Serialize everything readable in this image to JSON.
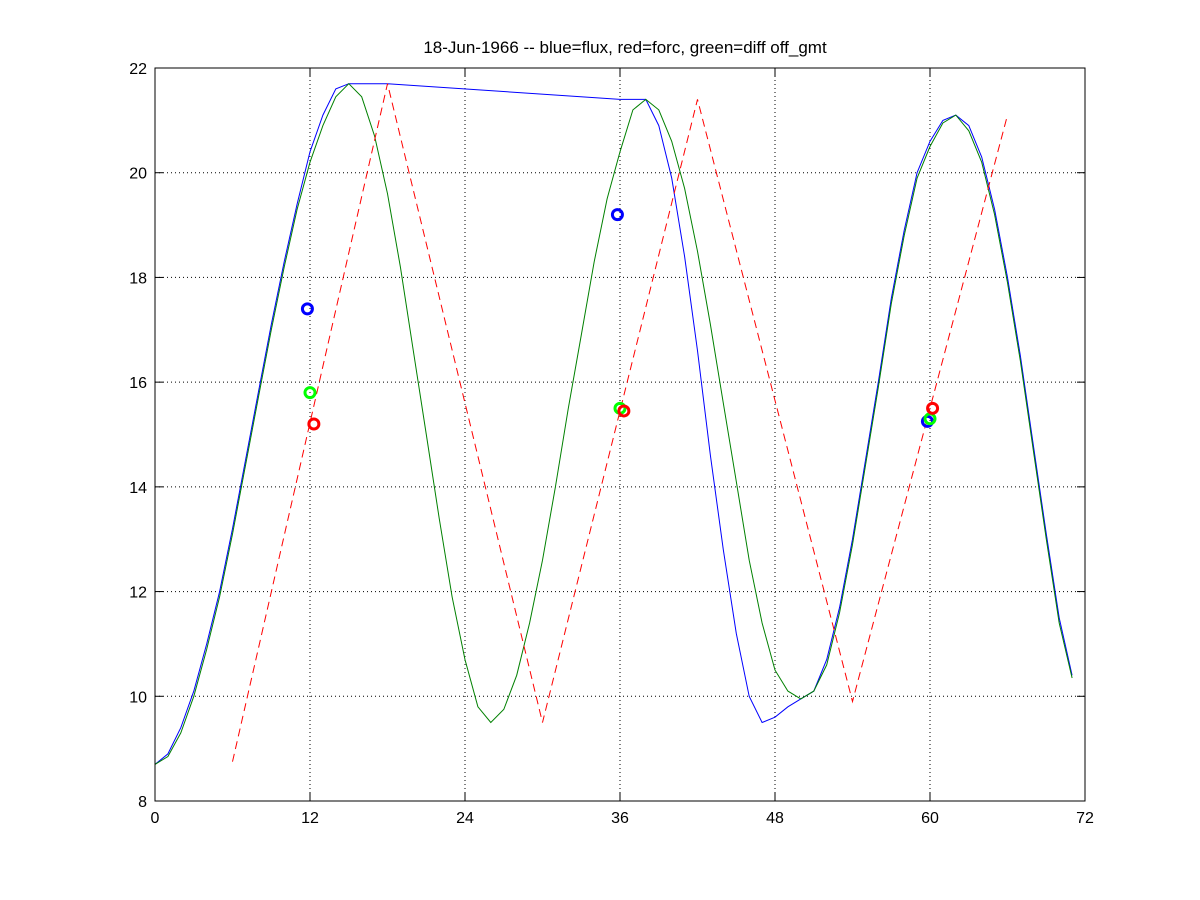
{
  "chart_data": {
    "type": "line",
    "title": "18-Jun-1966 -- blue=flux, red=forc, green=diff off_gmt",
    "xlabel": "",
    "ylabel": "",
    "xlim": [
      0,
      72
    ],
    "ylim": [
      8,
      22
    ],
    "xticks": [
      0,
      12,
      24,
      36,
      48,
      60,
      72
    ],
    "yticks": [
      8,
      10,
      12,
      14,
      16,
      18,
      20,
      22
    ],
    "grid": true,
    "legend": "none",
    "series": [
      {
        "color": "#0000ff",
        "style": "solid",
        "x": [
          0,
          1,
          2,
          3,
          4,
          5,
          6,
          7,
          8,
          9,
          10,
          11,
          12,
          13,
          14,
          15,
          16,
          18,
          36,
          37,
          38,
          39,
          40,
          41,
          42,
          43,
          44,
          45,
          46,
          47,
          48,
          49,
          50,
          51,
          52,
          53,
          54,
          55,
          56,
          57,
          58,
          59,
          60,
          61,
          62,
          63,
          64,
          65,
          66,
          67,
          68,
          69,
          70,
          71
        ],
        "y": [
          8.7,
          8.9,
          9.4,
          10.1,
          11.0,
          12.0,
          13.2,
          14.5,
          15.8,
          17.1,
          18.3,
          19.4,
          20.4,
          21.1,
          21.6,
          21.7,
          21.7,
          21.7,
          21.4,
          21.4,
          21.4,
          20.9,
          19.9,
          18.4,
          16.6,
          14.6,
          12.8,
          11.2,
          10.0,
          9.5,
          9.6,
          9.8,
          9.95,
          10.1,
          10.7,
          11.7,
          13.0,
          14.5,
          16.0,
          17.6,
          18.9,
          20.0,
          20.6,
          21.0,
          21.1,
          20.9,
          20.3,
          19.3,
          18.0,
          16.5,
          14.8,
          13.1,
          11.5,
          10.4
        ]
      },
      {
        "color": "#008000",
        "style": "solid",
        "x": [
          0,
          1,
          2,
          3,
          4,
          5,
          6,
          7,
          8,
          9,
          10,
          11,
          12,
          13,
          14,
          15,
          16,
          17,
          18,
          19,
          20,
          21,
          22,
          23,
          24,
          25,
          26,
          27,
          28,
          29,
          30,
          31,
          32,
          33,
          34,
          35,
          36,
          37,
          38,
          39,
          40,
          41,
          42,
          43,
          44,
          45,
          46,
          47,
          48,
          49,
          50,
          51,
          52,
          53,
          54,
          55,
          56,
          57,
          58,
          59,
          60,
          61,
          62,
          63,
          64,
          65,
          66,
          67,
          68,
          69,
          70,
          71
        ],
        "y": [
          8.7,
          8.85,
          9.3,
          10.0,
          10.9,
          11.9,
          13.1,
          14.4,
          15.7,
          17.0,
          18.2,
          19.3,
          20.2,
          20.9,
          21.45,
          21.7,
          21.45,
          20.7,
          19.6,
          18.2,
          16.6,
          15.0,
          13.4,
          11.9,
          10.7,
          9.8,
          9.5,
          9.75,
          10.4,
          11.4,
          12.6,
          14.0,
          15.5,
          16.9,
          18.3,
          19.5,
          20.4,
          21.2,
          21.4,
          21.2,
          20.6,
          19.7,
          18.5,
          17.1,
          15.6,
          14.1,
          12.6,
          11.4,
          10.5,
          10.1,
          9.95,
          10.1,
          10.6,
          11.6,
          12.9,
          14.4,
          15.9,
          17.5,
          18.8,
          19.9,
          20.5,
          20.95,
          21.1,
          20.8,
          20.2,
          19.2,
          17.9,
          16.4,
          14.7,
          13.0,
          11.4,
          10.35
        ]
      },
      {
        "color": "#ff0000",
        "style": "dashed",
        "x": [
          6,
          18,
          30,
          42,
          54,
          66
        ],
        "y": [
          8.75,
          21.7,
          9.5,
          21.4,
          9.9,
          21.1
        ]
      }
    ],
    "markers": [
      {
        "color": "#0000ff",
        "x": 11.8,
        "y": 17.4
      },
      {
        "color": "#00ff00",
        "x": 12.0,
        "y": 15.8
      },
      {
        "color": "#ff0000",
        "x": 12.3,
        "y": 15.2
      },
      {
        "color": "#0000ff",
        "x": 35.8,
        "y": 19.2
      },
      {
        "color": "#00ff00",
        "x": 36.0,
        "y": 15.5
      },
      {
        "color": "#ff0000",
        "x": 36.3,
        "y": 15.45
      },
      {
        "color": "#0000ff",
        "x": 59.8,
        "y": 15.25
      },
      {
        "color": "#00ff00",
        "x": 60.0,
        "y": 15.3
      },
      {
        "color": "#ff0000",
        "x": 60.2,
        "y": 15.5
      }
    ]
  }
}
